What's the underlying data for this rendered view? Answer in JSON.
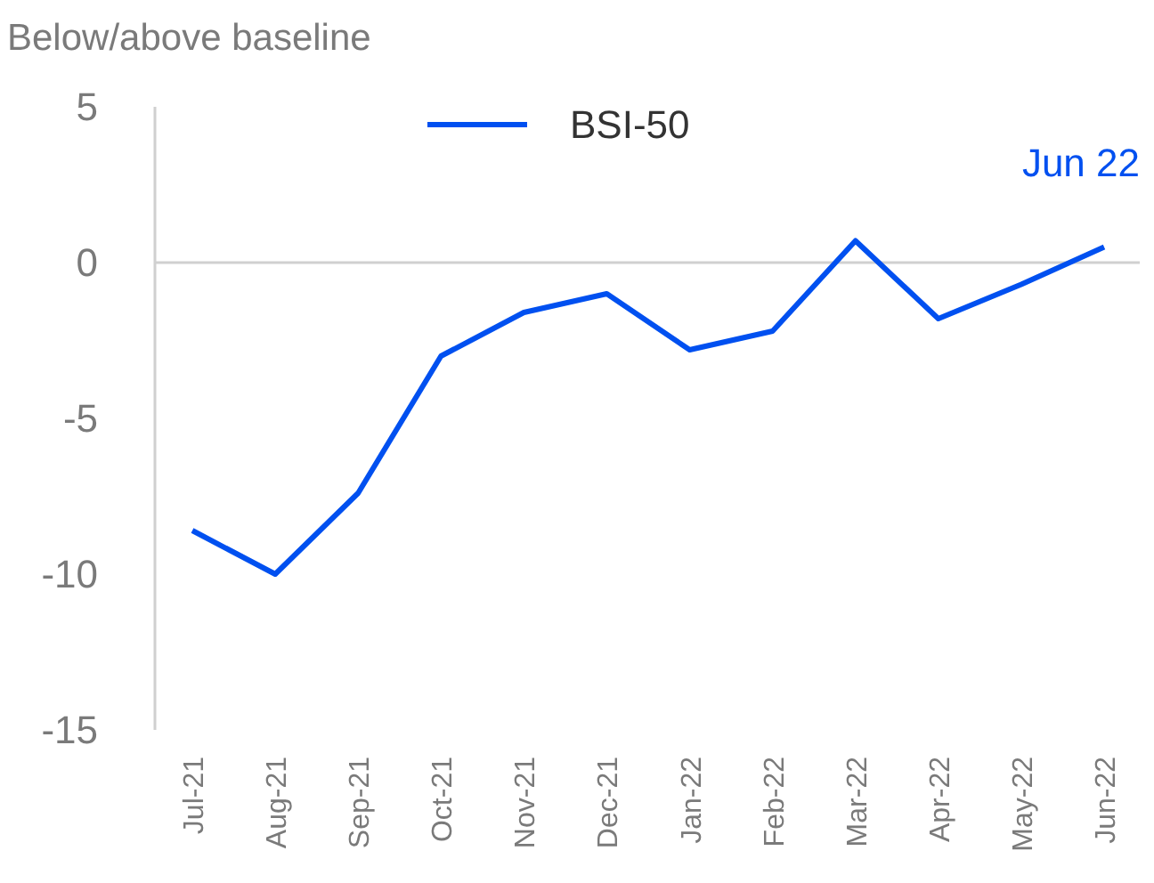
{
  "chart_data": {
    "type": "line",
    "ylabel": "Below/above baseline",
    "categories": [
      "Jul-21",
      "Aug-21",
      "Sep-21",
      "Oct-21",
      "Nov-21",
      "Dec-21",
      "Jan-22",
      "Feb-22",
      "Mar-22",
      "Apr-22",
      "May-22",
      "Jun-22"
    ],
    "series": [
      {
        "name": "BSI-50",
        "color": "#0050f0",
        "values": [
          -8.6,
          -10.0,
          -7.4,
          -3.0,
          -1.6,
          -1.0,
          -2.8,
          -2.2,
          0.7,
          -1.8,
          -0.7,
          0.5
        ]
      }
    ],
    "ylim": [
      -15,
      5
    ],
    "yticks": [
      -15,
      -10,
      -5,
      0,
      5
    ],
    "ref_lines": [
      {
        "axis": "y",
        "value": 0,
        "color": "#d0d0d0"
      }
    ],
    "annotations": [
      {
        "text": "Jun 22",
        "x": "Jun-22",
        "y": 0.5
      }
    ],
    "legend": "top",
    "grid": false,
    "marker": "none",
    "line_style": "solid"
  }
}
